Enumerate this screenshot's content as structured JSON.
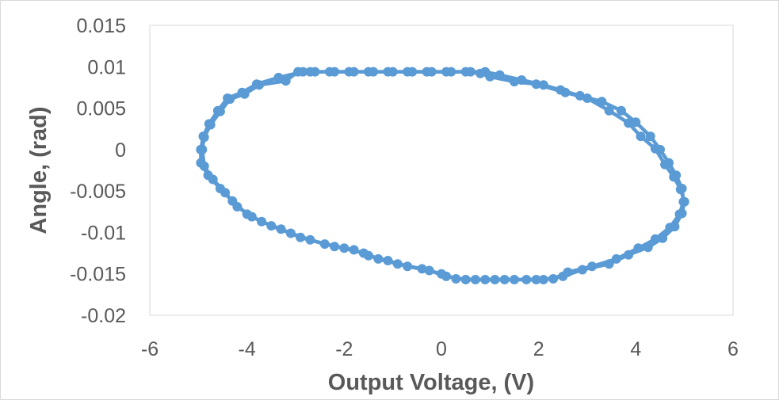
{
  "chart_data": {
    "type": "scatter",
    "title": "",
    "xlabel": "Output Voltage, (V)",
    "ylabel": "Angle, (rad)",
    "xlim": [
      -6,
      6
    ],
    "ylim": [
      -0.02,
      0.015
    ],
    "x_ticks": [
      "-6",
      "-4",
      "-2",
      "0",
      "2",
      "4",
      "6"
    ],
    "y_ticks": [
      "0.015",
      "0.01",
      "0.005",
      "0",
      "-0.005",
      "-0.01",
      "-0.015",
      "-0.02"
    ],
    "grid": false,
    "legend": "none",
    "series_color": "#5b9bd5",
    "series": [
      {
        "points": [
          [
            -4.95,
            0.0
          ],
          [
            -4.9,
            0.0016
          ],
          [
            -4.78,
            0.0031
          ],
          [
            -4.6,
            0.0047
          ],
          [
            -4.4,
            0.0062
          ],
          [
            -4.1,
            0.0069
          ],
          [
            -3.8,
            0.0079
          ],
          [
            -3.35,
            0.0087
          ],
          [
            -2.85,
            0.0094
          ],
          [
            -2.6,
            0.0094
          ],
          [
            -2.2,
            0.0094
          ],
          [
            -1.8,
            0.0094
          ],
          [
            -1.4,
            0.0094
          ],
          [
            -1.0,
            0.0094
          ],
          [
            -0.6,
            0.0094
          ],
          [
            -0.2,
            0.0094
          ],
          [
            0.2,
            0.0094
          ],
          [
            0.6,
            0.0094
          ],
          [
            0.9,
            0.0094
          ],
          [
            1.2,
            0.009
          ],
          [
            1.65,
            0.0084
          ],
          [
            2.1,
            0.0078
          ],
          [
            2.45,
            0.0072
          ],
          [
            2.85,
            0.0065
          ],
          [
            3.3,
            0.0058
          ],
          [
            3.7,
            0.0047
          ],
          [
            4.0,
            0.0033
          ],
          [
            4.3,
            0.0016
          ],
          [
            4.5,
            0.0
          ],
          [
            4.68,
            -0.0016
          ],
          [
            4.83,
            -0.0031
          ],
          [
            4.95,
            -0.0047
          ],
          [
            4.98,
            -0.0063
          ],
          [
            4.9,
            -0.0078
          ],
          [
            4.7,
            -0.0094
          ],
          [
            4.4,
            -0.0108
          ],
          [
            4.05,
            -0.0119
          ],
          [
            3.6,
            -0.0132
          ],
          [
            3.1,
            -0.0141
          ],
          [
            2.6,
            -0.0148
          ],
          [
            2.3,
            -0.0156
          ],
          [
            1.95,
            -0.0157
          ],
          [
            1.5,
            -0.0157
          ],
          [
            1.1,
            -0.0157
          ],
          [
            0.7,
            -0.0157
          ],
          [
            0.3,
            -0.0156
          ],
          [
            0.0,
            -0.015
          ],
          [
            -0.4,
            -0.0144
          ],
          [
            -0.9,
            -0.0138
          ],
          [
            -1.3,
            -0.0132
          ],
          [
            -1.6,
            -0.0125
          ],
          [
            -2.0,
            -0.0119
          ],
          [
            -2.4,
            -0.0114
          ],
          [
            -2.9,
            -0.0106
          ],
          [
            -3.3,
            -0.0096
          ],
          [
            -3.7,
            -0.0087
          ],
          [
            -4.0,
            -0.0078
          ],
          [
            -4.3,
            -0.0062
          ],
          [
            -4.55,
            -0.0047
          ],
          [
            -4.8,
            -0.0031
          ],
          [
            -4.95,
            -0.0016
          ],
          [
            -4.95,
            0.0
          ]
        ]
      },
      {
        "points": [
          [
            -4.92,
            0.0
          ],
          [
            -4.88,
            0.0015
          ],
          [
            -4.75,
            0.003
          ],
          [
            -4.55,
            0.0046
          ],
          [
            -4.35,
            0.0061
          ],
          [
            -4.05,
            0.0067
          ],
          [
            -3.75,
            0.0078
          ],
          [
            -3.2,
            0.0083
          ],
          [
            -2.95,
            0.0094
          ],
          [
            -2.7,
            0.0094
          ],
          [
            -2.3,
            0.0094
          ],
          [
            -1.9,
            0.0094
          ],
          [
            -1.5,
            0.0094
          ],
          [
            -1.1,
            0.0094
          ],
          [
            -0.7,
            0.0094
          ],
          [
            -0.3,
            0.0094
          ],
          [
            0.1,
            0.0094
          ],
          [
            0.5,
            0.0094
          ],
          [
            0.8,
            0.0092
          ],
          [
            1.0,
            0.0088
          ],
          [
            1.5,
            0.0082
          ],
          [
            1.95,
            0.0079
          ],
          [
            2.55,
            0.0069
          ],
          [
            3.0,
            0.0062
          ],
          [
            3.45,
            0.0047
          ],
          [
            3.85,
            0.0032
          ],
          [
            4.1,
            0.0016
          ],
          [
            4.4,
            0.0001
          ],
          [
            4.6,
            -0.0018
          ],
          [
            4.78,
            -0.0033
          ],
          [
            4.92,
            -0.0048
          ],
          [
            5.0,
            -0.0063
          ],
          [
            4.95,
            -0.0077
          ],
          [
            4.8,
            -0.0093
          ],
          [
            4.55,
            -0.0107
          ],
          [
            4.25,
            -0.0118
          ],
          [
            3.85,
            -0.0127
          ],
          [
            3.45,
            -0.0138
          ],
          [
            2.9,
            -0.0145
          ],
          [
            2.5,
            -0.0153
          ],
          [
            2.1,
            -0.0157
          ],
          [
            1.75,
            -0.0157
          ],
          [
            1.3,
            -0.0157
          ],
          [
            0.9,
            -0.0157
          ],
          [
            0.5,
            -0.0157
          ],
          [
            0.1,
            -0.0153
          ],
          [
            -0.25,
            -0.0146
          ],
          [
            -0.7,
            -0.0141
          ],
          [
            -1.1,
            -0.0134
          ],
          [
            -1.5,
            -0.0128
          ],
          [
            -1.8,
            -0.0121
          ],
          [
            -2.2,
            -0.0117
          ],
          [
            -2.7,
            -0.0109
          ],
          [
            -3.1,
            -0.0101
          ],
          [
            -3.5,
            -0.0092
          ],
          [
            -3.9,
            -0.0081
          ],
          [
            -4.2,
            -0.0069
          ],
          [
            -4.45,
            -0.0052
          ],
          [
            -4.7,
            -0.0036
          ],
          [
            -4.88,
            -0.002
          ],
          [
            -4.92,
            0.0
          ]
        ]
      }
    ]
  }
}
